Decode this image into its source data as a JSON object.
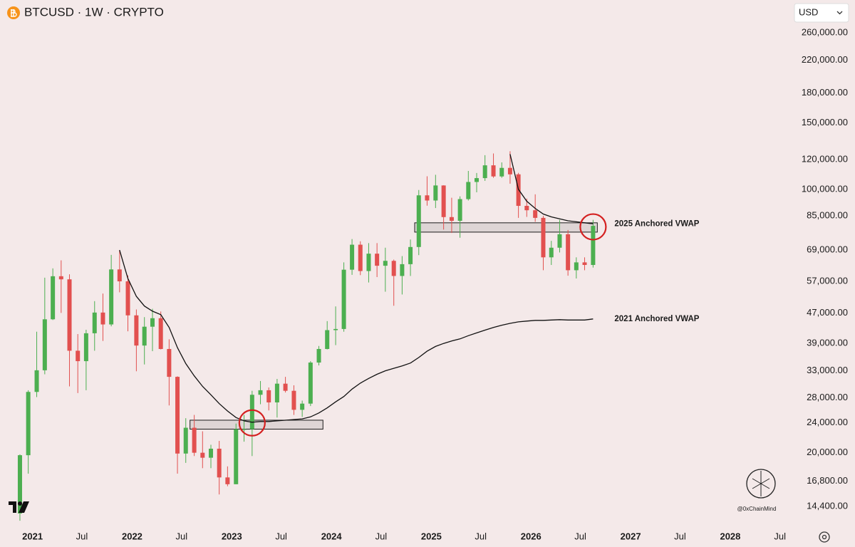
{
  "chart_data": {
    "type": "candlestick",
    "title": "BTCUSD · 1W · CRYPTO",
    "currency": "USD",
    "watermark": "@0xChainMind",
    "log_scale": true,
    "grid": false,
    "up_color": "#4caf50",
    "down_color": "#e2504f",
    "x": [
      "2020-11",
      "2020-12",
      "2021-01",
      "2021-02",
      "2021-03",
      "2021-04",
      "2021-05",
      "2021-06",
      "2021-07",
      "2021-08",
      "2021-09",
      "2021-10",
      "2021-11",
      "2021-12",
      "2022-01",
      "2022-02",
      "2022-03",
      "2022-04",
      "2022-05",
      "2022-06",
      "2022-07",
      "2022-08",
      "2022-09",
      "2022-10",
      "2022-11",
      "2022-12",
      "2023-01",
      "2023-02",
      "2023-03",
      "2023-04",
      "2023-05",
      "2023-06",
      "2023-07",
      "2023-08",
      "2023-09",
      "2023-10",
      "2023-11",
      "2023-12",
      "2024-01",
      "2024-02",
      "2024-03",
      "2024-04",
      "2024-05",
      "2024-06",
      "2024-07",
      "2024-08",
      "2024-09",
      "2024-10",
      "2024-11",
      "2024-12",
      "2025-01",
      "2025-02",
      "2025-03",
      "2025-04",
      "2025-05",
      "2025-06",
      "2025-07",
      "2025-08",
      "2025-09",
      "2025-10",
      "2025-11",
      "2025-12",
      "2026-01",
      "2026-02",
      "2026-03",
      "2026-04",
      "2026-05",
      "2026-06",
      "2026-07",
      "2026-08"
    ],
    "open": [
      13800,
      19700,
      29000,
      33100,
      45200,
      58800,
      57700,
      37300,
      35000,
      41500,
      47100,
      43800,
      61300,
      57000,
      46300,
      38500,
      43200,
      45500,
      37700,
      31800,
      19900,
      23300,
      20000,
      19400,
      20500,
      17200,
      16500,
      23100,
      23100,
      28500,
      29300,
      27200,
      30500,
      29200,
      26000,
      27000,
      34700,
      37700,
      42300,
      42600,
      61200,
      71300,
      60700,
      67500,
      62700,
      64600,
      58900,
      63300,
      70300,
      96400,
      93400,
      102400,
      84400,
      82500,
      94200,
      104600,
      107100,
      115800,
      108200,
      114000,
      109600,
      90400,
      88000,
      84000,
      66000,
      70000,
      76000,
      61000,
      64000,
      63000
    ],
    "high": [
      19800,
      29300,
      41900,
      58300,
      61700,
      64800,
      59500,
      41300,
      42400,
      50500,
      52900,
      67000,
      69000,
      59100,
      48000,
      45800,
      48200,
      47400,
      40000,
      31900,
      24700,
      25200,
      22800,
      21000,
      21500,
      18400,
      23900,
      25200,
      29200,
      31000,
      29800,
      31400,
      31800,
      30200,
      27500,
      35000,
      38400,
      44700,
      48900,
      64000,
      73800,
      72800,
      72000,
      72000,
      70000,
      65100,
      66500,
      73600,
      99600,
      108300,
      109300,
      102500,
      95000,
      95800,
      111900,
      110500,
      123200,
      124500,
      117900,
      126200,
      110600,
      94500,
      97000,
      85000,
      73000,
      83000,
      78000,
      66000,
      66000,
      83000
    ],
    "low": [
      13200,
      17600,
      28100,
      32300,
      45000,
      47000,
      30000,
      28800,
      29300,
      37300,
      39600,
      43300,
      53300,
      42000,
      32900,
      34300,
      37200,
      37600,
      26700,
      17600,
      18800,
      19600,
      18200,
      18200,
      15500,
      16300,
      16500,
      21400,
      19600,
      26900,
      25900,
      24800,
      28900,
      25200,
      24900,
      26600,
      34100,
      37600,
      38600,
      41900,
      59300,
      59200,
      56600,
      58500,
      53500,
      49100,
      52600,
      58900,
      66900,
      90500,
      89200,
      78200,
      76600,
      74400,
      93400,
      98200,
      105300,
      107300,
      107300,
      103500,
      84000,
      84500,
      82000,
      61000,
      63000,
      68000,
      59000,
      58000,
      61000,
      62000
    ],
    "close": [
      19700,
      29000,
      33100,
      45200,
      58800,
      57700,
      37300,
      35000,
      41500,
      47100,
      43800,
      61300,
      57000,
      46300,
      38500,
      43200,
      45500,
      37700,
      31800,
      19900,
      23300,
      20000,
      19400,
      20500,
      17200,
      16500,
      23100,
      23100,
      28500,
      29300,
      27200,
      30500,
      29200,
      26000,
      27000,
      34700,
      37700,
      42300,
      42600,
      61200,
      71300,
      60700,
      67500,
      62700,
      64600,
      58900,
      63300,
      70300,
      96400,
      93400,
      102400,
      84400,
      82500,
      94200,
      104600,
      107100,
      115800,
      108200,
      114000,
      109600,
      90400,
      88000,
      84000,
      66000,
      70000,
      76000,
      61000,
      64000,
      63000,
      80000
    ],
    "series": [
      {
        "name": "2021 Anchored VWAP",
        "color": "#111111",
        "values": [
          null,
          null,
          null,
          null,
          null,
          null,
          null,
          null,
          null,
          null,
          null,
          null,
          69000,
          58000,
          52000,
          49000,
          47500,
          46500,
          43000,
          38000,
          34500,
          32000,
          30000,
          28500,
          27000,
          25800,
          24800,
          24300,
          24100,
          24200,
          24200,
          24300,
          24400,
          24500,
          24600,
          24900,
          25500,
          26300,
          27300,
          28200,
          29500,
          30600,
          31500,
          32300,
          33000,
          33500,
          34000,
          34600,
          35800,
          37200,
          38300,
          39000,
          39600,
          40100,
          40900,
          41600,
          42300,
          43000,
          43600,
          44100,
          44500,
          44700,
          44900,
          44900,
          45000,
          45100,
          45000,
          45000,
          45000,
          45300
        ]
      },
      {
        "name": "2025 Anchored VWAP",
        "color": "#111111",
        "values": [
          null,
          null,
          null,
          null,
          null,
          null,
          null,
          null,
          null,
          null,
          null,
          null,
          null,
          null,
          null,
          null,
          null,
          null,
          null,
          null,
          null,
          null,
          null,
          null,
          null,
          null,
          null,
          null,
          null,
          null,
          null,
          null,
          null,
          null,
          null,
          null,
          null,
          null,
          null,
          null,
          null,
          null,
          null,
          null,
          null,
          null,
          null,
          null,
          null,
          null,
          null,
          null,
          null,
          null,
          null,
          null,
          null,
          null,
          null,
          124000,
          100000,
          93000,
          89000,
          86000,
          84500,
          83500,
          82500,
          82000,
          81500,
          81000
        ]
      }
    ],
    "zones": [
      {
        "x": [
          "2022-08",
          "2023-12"
        ],
        "y": [
          23100,
          24400
        ]
      },
      {
        "x": [
          "2024-11",
          "2026-09"
        ],
        "y": [
          77000,
          81500
        ]
      }
    ],
    "highlights": [
      {
        "x": "2023-03",
        "y": 24000
      },
      {
        "x": "2026-08",
        "y": 79500
      }
    ],
    "xlim": [
      "2020-09-04",
      "2028-08-10"
    ],
    "xticks": [
      {
        "value": "2021-01",
        "label": "2021"
      },
      {
        "value": "2021-07",
        "label": "Jul"
      },
      {
        "value": "2022-01",
        "label": "2022"
      },
      {
        "value": "2022-07",
        "label": "Jul"
      },
      {
        "value": "2023-01",
        "label": "2023"
      },
      {
        "value": "2023-07",
        "label": "Jul"
      },
      {
        "value": "2024-01",
        "label": "2024"
      },
      {
        "value": "2024-07",
        "label": "Jul"
      },
      {
        "value": "2025-01",
        "label": "2025"
      },
      {
        "value": "2025-07",
        "label": "Jul"
      },
      {
        "value": "2026-01",
        "label": "2026"
      },
      {
        "value": "2026-07",
        "label": "Jul"
      },
      {
        "value": "2027-01",
        "label": "2027"
      },
      {
        "value": "2027-07",
        "label": "Jul"
      },
      {
        "value": "2028-01",
        "label": "2028"
      },
      {
        "value": "2028-07",
        "label": "Jul"
      }
    ],
    "ylim": [
      12700,
      318000
    ],
    "yticks": [
      {
        "value": 260000,
        "label": "260,000.00"
      },
      {
        "value": 220000,
        "label": "220,000.00"
      },
      {
        "value": 180000,
        "label": "180,000.00"
      },
      {
        "value": 150000,
        "label": "150,000.00"
      },
      {
        "value": 120000,
        "label": "120,000.00"
      },
      {
        "value": 100000,
        "label": "100,000.00"
      },
      {
        "value": 85000,
        "label": "85,000.00"
      },
      {
        "value": 69000,
        "label": "69,000.00"
      },
      {
        "value": 57000,
        "label": "57,000.00"
      },
      {
        "value": 47000,
        "label": "47,000.00"
      },
      {
        "value": 39000,
        "label": "39,000.00"
      },
      {
        "value": 33000,
        "label": "33,000.00"
      },
      {
        "value": 28000,
        "label": "28,000.00"
      },
      {
        "value": 24000,
        "label": "24,000.00"
      },
      {
        "value": 20000,
        "label": "20,000.00"
      },
      {
        "value": 16800,
        "label": "16,800.00"
      },
      {
        "value": 14400,
        "label": "14,400.00"
      }
    ]
  }
}
